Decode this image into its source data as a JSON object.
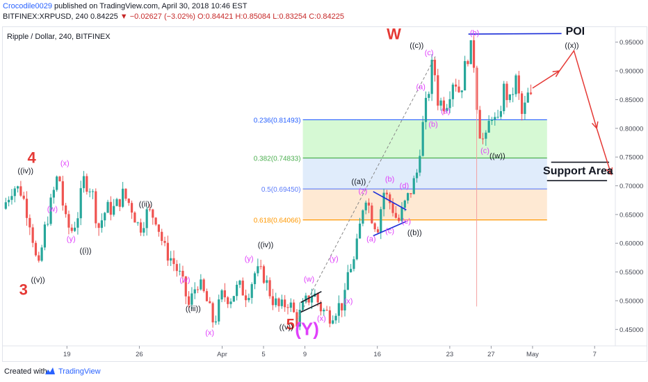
{
  "header": {
    "author": "Crocodile0029",
    "published_text": "published on TradingView.com, April 30, 2018 10:46 EST",
    "symbol_line": "BITFINEX:XRPUSD, 240",
    "last_price": "0.84225",
    "change_arrow": "▼",
    "change": "−0.02627 (−3.02%)",
    "ohlc_text": "O:0.84421 H:0.85084 L:0.83254 C:0.84225"
  },
  "chart_title": "Ripple / Dollar, 240, BITFINEX",
  "footer": {
    "created_with": "Created with",
    "brand": "TradingView"
  },
  "colors": {
    "up": "#26a69a",
    "down": "#ef5350",
    "fib_236": "#2962ff",
    "fib_382": "#4caf50",
    "fib_5": "#5c7cfa",
    "fib_618": "#ff9800",
    "zone_green": "#c8f7c5",
    "zone_blue": "#d6e6fa",
    "zone_orange": "#fde2c4",
    "wave_red": "#e53935",
    "wave_magenta": "#e040fb",
    "wave_black": "#131722",
    "trend_blue": "#1a2dd8"
  },
  "chart_data": {
    "type": "candlestick",
    "x_axis": {
      "ticks": [
        {
          "label": "19",
          "t": 11
        },
        {
          "label": "26",
          "t": 46
        },
        {
          "label": "Apr",
          "t": 86
        },
        {
          "label": "5",
          "t": 106
        },
        {
          "label": "9",
          "t": 126
        },
        {
          "label": "16",
          "t": 161
        },
        {
          "label": "23",
          "t": 196
        },
        {
          "label": "27",
          "t": 216
        },
        {
          "label": "May",
          "t": 236
        },
        {
          "label": "7",
          "t": 266
        }
      ],
      "range": [
        -20,
        276
      ]
    },
    "y_axis": {
      "ticks": [
        "0.45000",
        "0.50000",
        "0.55000",
        "0.60000",
        "0.65000",
        "0.70000",
        "0.75000",
        "0.80000",
        "0.85000",
        "0.90000",
        "0.95000"
      ],
      "range": [
        0.425,
        0.975
      ]
    },
    "fib_levels": [
      {
        "label": "0.236(0.81493)",
        "value": 0.81493,
        "color": "#2962ff"
      },
      {
        "label": "0.382(0.74833)",
        "value": 0.74833,
        "color": "#4caf50"
      },
      {
        "label": "0.5(0.69450)",
        "value": 0.6945,
        "color": "#5c7cfa"
      },
      {
        "label": "0.618(0.64066)",
        "value": 0.64066,
        "color": "#ff9800"
      }
    ],
    "fib_span": [
      125,
      243
    ],
    "price_path": [
      [
        -20,
        0.66
      ],
      [
        -15,
        0.7
      ],
      [
        -11,
        0.69
      ],
      [
        -7,
        0.64
      ],
      [
        -5,
        0.6
      ],
      [
        -3,
        0.545
      ],
      [
        0,
        0.62
      ],
      [
        4,
        0.68
      ],
      [
        7,
        0.725
      ],
      [
        10,
        0.64
      ],
      [
        13,
        0.62
      ],
      [
        16,
        0.645
      ],
      [
        19,
        0.71
      ],
      [
        23,
        0.695
      ],
      [
        26,
        0.625
      ],
      [
        30,
        0.66
      ],
      [
        34,
        0.66
      ],
      [
        38,
        0.685
      ],
      [
        42,
        0.665
      ],
      [
        46,
        0.625
      ],
      [
        50,
        0.655
      ],
      [
        54,
        0.645
      ],
      [
        58,
        0.59
      ],
      [
        62,
        0.57
      ],
      [
        66,
        0.54
      ],
      [
        70,
        0.49
      ],
      [
        74,
        0.535
      ],
      [
        78,
        0.505
      ],
      [
        82,
        0.46
      ],
      [
        86,
        0.51
      ],
      [
        90,
        0.505
      ],
      [
        94,
        0.525
      ],
      [
        98,
        0.51
      ],
      [
        102,
        0.55
      ],
      [
        106,
        0.545
      ],
      [
        110,
        0.505
      ],
      [
        114,
        0.485
      ],
      [
        118,
        0.5
      ],
      [
        122,
        0.465
      ],
      [
        126,
        0.495
      ],
      [
        130,
        0.515
      ],
      [
        134,
        0.485
      ],
      [
        138,
        0.475
      ],
      [
        142,
        0.49
      ],
      [
        145,
        0.495
      ],
      [
        147,
        0.555
      ],
      [
        150,
        0.57
      ],
      [
        152,
        0.615
      ],
      [
        155,
        0.69
      ],
      [
        158,
        0.65
      ],
      [
        161,
        0.625
      ],
      [
        164,
        0.69
      ],
      [
        168,
        0.665
      ],
      [
        171,
        0.635
      ],
      [
        174,
        0.665
      ],
      [
        177,
        0.69
      ],
      [
        180,
        0.72
      ],
      [
        182,
        0.78
      ],
      [
        184,
        0.83
      ],
      [
        186,
        0.87
      ],
      [
        188,
        0.925
      ],
      [
        190,
        0.85
      ],
      [
        194,
        0.84
      ],
      [
        198,
        0.89
      ],
      [
        201,
        0.86
      ],
      [
        204,
        0.92
      ],
      [
        207,
        0.945
      ],
      [
        210,
        0.8
      ],
      [
        213,
        0.77
      ],
      [
        216,
        0.83
      ],
      [
        219,
        0.8
      ],
      [
        222,
        0.87
      ],
      [
        225,
        0.845
      ],
      [
        228,
        0.885
      ],
      [
        231,
        0.82
      ],
      [
        234,
        0.86
      ],
      [
        236,
        0.845
      ]
    ],
    "volatility_spikes": [
      {
        "t": 209,
        "high": 0.905,
        "low": 0.49
      }
    ],
    "trendlines": [
      {
        "name": "dashed-trend",
        "points": [
          [
            122,
            0.465
          ],
          [
            189,
            0.925
          ]
        ],
        "color": "#888888",
        "dashed": true
      },
      {
        "name": "triangle-top",
        "points": [
          [
            159,
            0.69
          ],
          [
            175,
            0.658
          ]
        ],
        "color": "#1a2dd8"
      },
      {
        "name": "triangle-bottom",
        "points": [
          [
            159,
            0.613
          ],
          [
            175,
            0.638
          ]
        ],
        "color": "#1a2dd8"
      },
      {
        "name": "wedge-top",
        "points": [
          [
            124,
            0.497
          ],
          [
            134,
            0.516
          ]
        ],
        "color": "#131722"
      },
      {
        "name": "wedge-bottom",
        "points": [
          [
            124,
            0.48
          ],
          [
            134,
            0.497
          ]
        ],
        "color": "#131722"
      },
      {
        "name": "poi-line",
        "points": [
          [
            205,
            0.964
          ],
          [
            250,
            0.965
          ]
        ],
        "color": "#1a2dd8"
      },
      {
        "name": "support-top",
        "points": [
          [
            245,
            0.741
          ],
          [
            273,
            0.741
          ]
        ],
        "color": "#131722"
      },
      {
        "name": "support-bottom",
        "points": [
          [
            243,
            0.709
          ],
          [
            272,
            0.709
          ]
        ],
        "color": "#131722"
      }
    ],
    "projection": {
      "points": [
        [
          236,
          0.87
        ],
        [
          249,
          0.9
        ],
        [
          256,
          0.935
        ],
        [
          267,
          0.8
        ],
        [
          274,
          0.72
        ]
      ],
      "arrow_ends": [
        [
          249,
          0.9
        ],
        [
          267,
          0.8
        ],
        [
          274,
          0.72
        ]
      ],
      "color": "#e53935"
    },
    "annotations": [
      {
        "text": "4",
        "t": -6,
        "p": 0.74,
        "color": "#e53935",
        "size": 22,
        "bold": true
      },
      {
        "text": "3",
        "t": -10,
        "p": 0.51,
        "color": "#e53935",
        "size": 22,
        "bold": true
      },
      {
        "text": "W",
        "t": 169,
        "p": 0.955,
        "color": "#e53935",
        "size": 22,
        "bold": true
      },
      {
        "text": "5",
        "t": 119,
        "p": 0.45,
        "color": "#e53935",
        "size": 22,
        "bold": true
      },
      {
        "text": "(Y)",
        "t": 127,
        "p": 0.44,
        "color": "#e040fb",
        "size": 26,
        "bold": true
      },
      {
        "text": "((iv))",
        "t": -9,
        "p": 0.722,
        "color": "#131722",
        "size": 11
      },
      {
        "text": "((v))",
        "t": -3,
        "p": 0.532,
        "color": "#131722",
        "size": 11
      },
      {
        "text": "(x)",
        "t": 10,
        "p": 0.735,
        "color": "#e040fb",
        "size": 11
      },
      {
        "text": "(w)",
        "t": 4,
        "p": 0.655,
        "color": "#e040fb",
        "size": 11
      },
      {
        "text": "(y)",
        "t": 13,
        "p": 0.603,
        "color": "#e040fb",
        "size": 11
      },
      {
        "text": "((i))",
        "t": 20,
        "p": 0.583,
        "color": "#131722",
        "size": 11
      },
      {
        "text": "((ii))",
        "t": 49,
        "p": 0.664,
        "color": "#131722",
        "size": 11
      },
      {
        "text": "(w)",
        "t": 68,
        "p": 0.532,
        "color": "#e040fb",
        "size": 11
      },
      {
        "text": "((iii))",
        "t": 72,
        "p": 0.482,
        "color": "#131722",
        "size": 11
      },
      {
        "text": "(x)",
        "t": 80,
        "p": 0.44,
        "color": "#e040fb",
        "size": 11
      },
      {
        "text": "(y)",
        "t": 99,
        "p": 0.569,
        "color": "#e040fb",
        "size": 11
      },
      {
        "text": "((iv))",
        "t": 107,
        "p": 0.593,
        "color": "#131722",
        "size": 11
      },
      {
        "text": "((v))",
        "t": 117,
        "p": 0.45,
        "color": "#131722",
        "size": 11
      },
      {
        "text": "(w)",
        "t": 128,
        "p": 0.533,
        "color": "#e040fb",
        "size": 11
      },
      {
        "text": "(x)",
        "t": 134,
        "p": 0.465,
        "color": "#e040fb",
        "size": 11
      },
      {
        "text": "(x)",
        "t": 147,
        "p": 0.495,
        "color": "#e040fb",
        "size": 11
      },
      {
        "text": "(y)",
        "t": 140,
        "p": 0.569,
        "color": "#e040fb",
        "size": 11
      },
      {
        "text": "((a))",
        "t": 152,
        "p": 0.703,
        "color": "#131722",
        "size": 11
      },
      {
        "text": "(z)",
        "t": 154,
        "p": 0.687,
        "color": "#e040fb",
        "size": 11
      },
      {
        "text": "(b)",
        "t": 167,
        "p": 0.707,
        "color": "#e040fb",
        "size": 11
      },
      {
        "text": "(d)",
        "t": 174,
        "p": 0.696,
        "color": "#e040fb",
        "size": 11
      },
      {
        "text": "(e)",
        "t": 175,
        "p": 0.634,
        "color": "#e040fb",
        "size": 11
      },
      {
        "text": "(a)",
        "t": 158,
        "p": 0.603,
        "color": "#e040fb",
        "size": 11
      },
      {
        "text": "(c)",
        "t": 167,
        "p": 0.617,
        "color": "#e040fb",
        "size": 11
      },
      {
        "text": "((b))",
        "t": 179,
        "p": 0.614,
        "color": "#131722",
        "size": 11
      },
      {
        "text": "((c))",
        "t": 180,
        "p": 0.94,
        "color": "#131722",
        "size": 11
      },
      {
        "text": "(c)",
        "t": 186,
        "p": 0.927,
        "color": "#e040fb",
        "size": 11
      },
      {
        "text": "(a)",
        "t": 182,
        "p": 0.868,
        "color": "#e040fb",
        "size": 11
      },
      {
        "text": "(a)",
        "t": 194,
        "p": 0.826,
        "color": "#e040fb",
        "size": 11
      },
      {
        "text": "(b)",
        "t": 188,
        "p": 0.803,
        "color": "#e040fb",
        "size": 11
      },
      {
        "text": "(b)",
        "t": 208,
        "p": 0.962,
        "color": "#e040fb",
        "size": 11
      },
      {
        "text": "(c)",
        "t": 213,
        "p": 0.757,
        "color": "#e040fb",
        "size": 11
      },
      {
        "text": "((w))",
        "t": 219,
        "p": 0.748,
        "color": "#131722",
        "size": 11
      },
      {
        "text": "((x))",
        "t": 255,
        "p": 0.94,
        "color": "#131722",
        "size": 11
      },
      {
        "text": "POI",
        "t": 252,
        "p": 0.963,
        "color": "#131722",
        "size": 16,
        "bold": true,
        "anchor": "start"
      },
      {
        "text": "Support Area",
        "t": 258,
        "p": 0.72,
        "color": "#131722",
        "size": 16,
        "bold": true
      }
    ],
    "title": "Ripple / Dollar, 240, BITFINEX",
    "grid": false
  }
}
